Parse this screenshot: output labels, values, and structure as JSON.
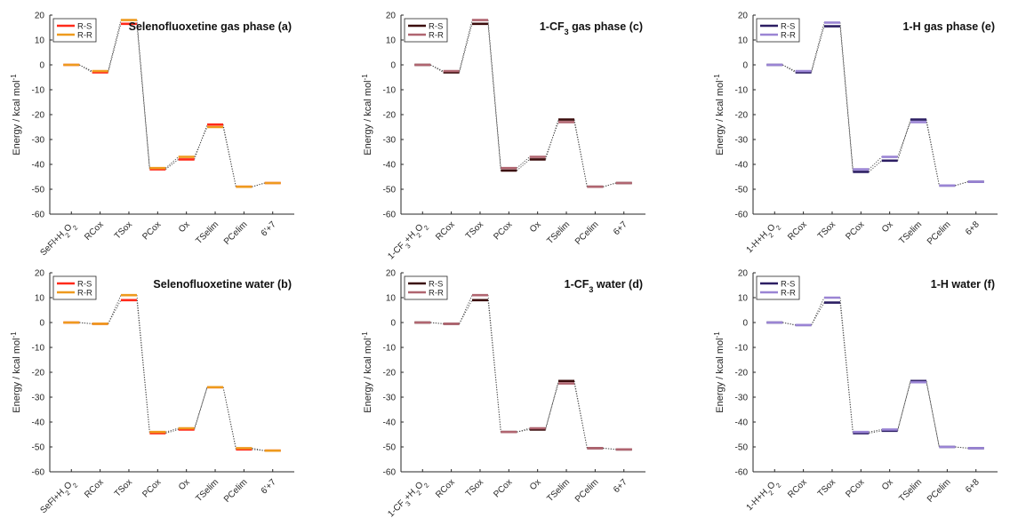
{
  "chart_data": [
    {
      "type": "line",
      "title_main": "Selenofluoxetine gas phase (a)",
      "title_sub": "",
      "title_tail": "",
      "ylabel": "Energy / kcal mol",
      "ylabel_sup": "-1",
      "ylim": [
        -60,
        20
      ],
      "yticks": [
        20,
        10,
        0,
        -10,
        -20,
        -30,
        -40,
        -50,
        -60
      ],
      "categories": [
        "SeFl+H2O2",
        "RCox",
        "TSox",
        "PCox",
        "Ox",
        "TSelim",
        "PCelim",
        "6'+7"
      ],
      "series": [
        {
          "name": "R-S",
          "color": "#ff2a1a",
          "values": [
            0,
            -3,
            16.5,
            -42,
            -38,
            -24,
            -49,
            -47.5
          ]
        },
        {
          "name": "R-R",
          "color": "#ee9a1e",
          "values": [
            0,
            -2.5,
            18,
            -41.5,
            -37,
            -25,
            -49,
            -47.5
          ]
        }
      ]
    },
    {
      "type": "line",
      "title_main": "1-CF",
      "title_sub": "3",
      "title_tail": " gas phase (c)",
      "ylabel": "Energy / kcal mol",
      "ylabel_sup": "-1",
      "ylim": [
        -60,
        20
      ],
      "yticks": [
        20,
        10,
        0,
        -10,
        -20,
        -30,
        -40,
        -50,
        -60
      ],
      "categories": [
        "1-CF3+H2O2",
        "RCox",
        "TSox",
        "PCox",
        "Ox",
        "TSelim",
        "PCelim",
        "6+7"
      ],
      "series": [
        {
          "name": "R-S",
          "color": "#3b0d0d",
          "values": [
            0,
            -3,
            16.5,
            -42.5,
            -38,
            -22,
            -49,
            -47.5
          ]
        },
        {
          "name": "R-R",
          "color": "#b06570",
          "values": [
            0,
            -2.5,
            18,
            -41.5,
            -37,
            -23,
            -49,
            -47.5
          ]
        }
      ]
    },
    {
      "type": "line",
      "title_main": "1-H gas phase (e)",
      "title_sub": "",
      "title_tail": "",
      "ylabel": "Energy / kcal mol",
      "ylabel_sup": "-1",
      "ylim": [
        -60,
        20
      ],
      "yticks": [
        20,
        10,
        0,
        -10,
        -20,
        -30,
        -40,
        -50,
        -60
      ],
      "categories": [
        "1-H+H2O2",
        "RCox",
        "TSox",
        "PCox",
        "Ox",
        "TSelim",
        "PCelim",
        "6+8"
      ],
      "series": [
        {
          "name": "R-S",
          "color": "#2c1e63",
          "values": [
            0,
            -3,
            15.5,
            -43,
            -38.5,
            -22,
            -48.5,
            -47
          ]
        },
        {
          "name": "R-R",
          "color": "#9a84d4",
          "values": [
            0,
            -2.5,
            17,
            -42,
            -37,
            -23,
            -48.5,
            -47
          ]
        }
      ]
    },
    {
      "type": "line",
      "title_main": "Selenofluoxetine water (b)",
      "title_sub": "",
      "title_tail": "",
      "ylabel": "Energy / kcal mol",
      "ylabel_sup": "-1",
      "ylim": [
        -60,
        20
      ],
      "yticks": [
        20,
        10,
        0,
        -10,
        -20,
        -30,
        -40,
        -50,
        -60
      ],
      "categories": [
        "SeFl+H2O2",
        "RCox",
        "TSox",
        "PCox",
        "Ox",
        "TSelim",
        "PCelim",
        "6'+7"
      ],
      "series": [
        {
          "name": "R-S",
          "color": "#ff2a1a",
          "values": [
            0,
            -0.5,
            9,
            -44.5,
            -43,
            -26,
            -51,
            -51.5
          ]
        },
        {
          "name": "R-R",
          "color": "#ee9a1e",
          "values": [
            0,
            -0.5,
            11,
            -44,
            -42.5,
            -26,
            -50.5,
            -51.5
          ]
        }
      ]
    },
    {
      "type": "line",
      "title_main": "1-CF",
      "title_sub": "3",
      "title_tail": " water (d)",
      "ylabel": "Energy / kcal mol",
      "ylabel_sup": "-1",
      "ylim": [
        -60,
        20
      ],
      "yticks": [
        20,
        10,
        0,
        -10,
        -20,
        -30,
        -40,
        -50,
        -60
      ],
      "categories": [
        "1-CF3+H2O2",
        "RCox",
        "TSox",
        "PCox",
        "Ox",
        "TSelim",
        "PCelim",
        "6+7"
      ],
      "series": [
        {
          "name": "R-S",
          "color": "#3b0d0d",
          "values": [
            0,
            -0.5,
            9,
            -44,
            -43,
            -23.5,
            -50.5,
            -51
          ]
        },
        {
          "name": "R-R",
          "color": "#b06570",
          "values": [
            0,
            -0.5,
            11,
            -44,
            -42.5,
            -24.5,
            -50.5,
            -51
          ]
        }
      ]
    },
    {
      "type": "line",
      "title_main": "1-H water (f)",
      "title_sub": "",
      "title_tail": "",
      "ylabel": "Energy / kcal mol",
      "ylabel_sup": "-1",
      "ylim": [
        -60,
        20
      ],
      "yticks": [
        20,
        10,
        0,
        -10,
        -20,
        -30,
        -40,
        -50,
        -60
      ],
      "categories": [
        "1-H+H2O2",
        "RCox",
        "TSox",
        "PCox",
        "Ox",
        "TSelim",
        "PCelim",
        "6+8"
      ],
      "series": [
        {
          "name": "R-S",
          "color": "#2c1e63",
          "values": [
            0,
            -1,
            8,
            -44.5,
            -43.5,
            -23.5,
            -50,
            -50.5
          ]
        },
        {
          "name": "R-R",
          "color": "#9a84d4",
          "values": [
            0,
            -1,
            10,
            -44,
            -43,
            -24,
            -50,
            -50.5
          ]
        }
      ]
    }
  ]
}
